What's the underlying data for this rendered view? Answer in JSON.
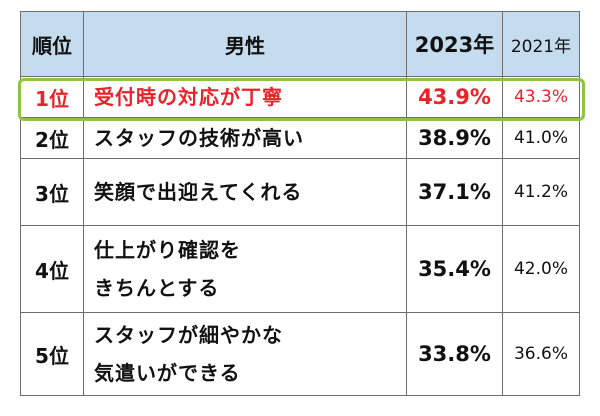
{
  "table": {
    "headers": {
      "rank": "順位",
      "item": "男性",
      "year2023": "2023年",
      "year2021": "2021年"
    },
    "rows": [
      {
        "rank": "1位",
        "lines": [
          "受付時の対応が丁寧"
        ],
        "pct2023": "43.9%",
        "pct2021": "43.3%"
      },
      {
        "rank": "2位",
        "lines": [
          "スタッフの技術が高い"
        ],
        "pct2023": "38.9%",
        "pct2021": "41.0%"
      },
      {
        "rank": "3位",
        "lines": [
          "笑顔で出迎えてくれる"
        ],
        "pct2023": "37.1%",
        "pct2021": "41.2%"
      },
      {
        "rank": "4位",
        "lines": [
          "仕上がり確認を",
          "きちんとする"
        ],
        "pct2023": "35.4%",
        "pct2021": "42.0%"
      },
      {
        "rank": "5位",
        "lines": [
          "スタッフが細やかな",
          "気遣いができる"
        ],
        "pct2023": "33.8%",
        "pct2021": "36.6%"
      }
    ]
  },
  "colors": {
    "header_bg": "#c5dcee",
    "highlight_text": "#e8232a",
    "highlight_frame": "#8cc63f",
    "border": "#6e6e6e"
  }
}
